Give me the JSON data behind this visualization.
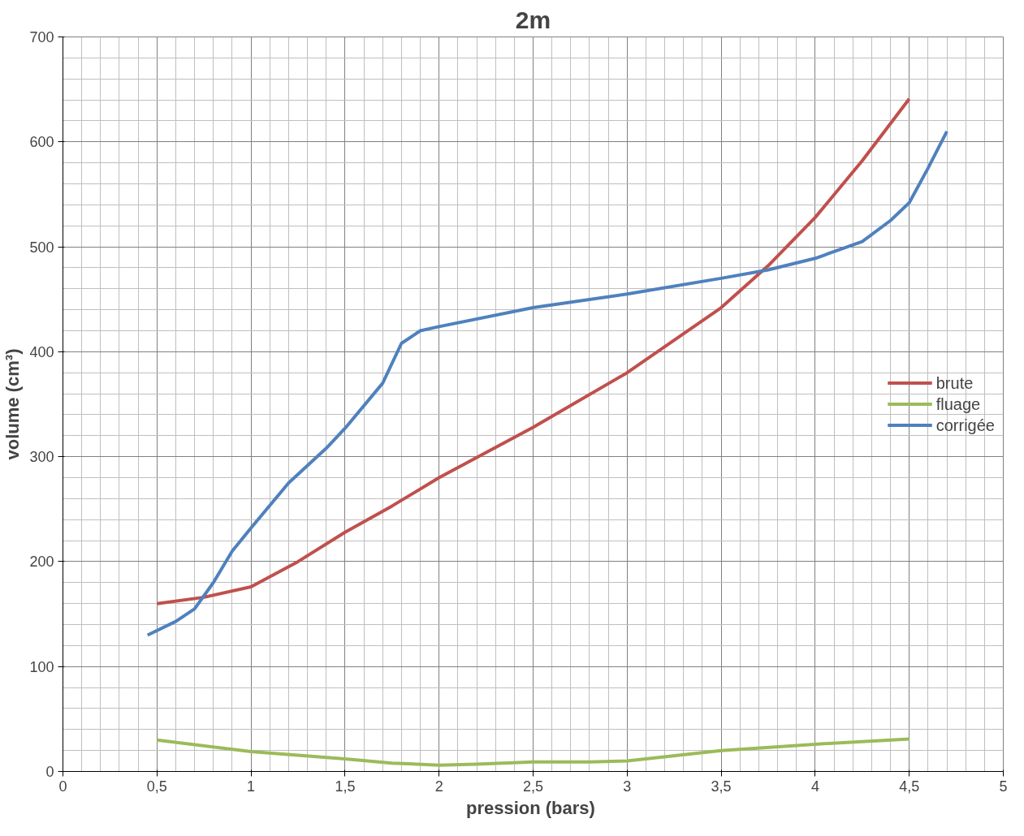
{
  "chart_data": {
    "type": "line",
    "title": "2m",
    "xlabel": "pression  (bars)",
    "ylabel": "volume (cm³)",
    "xlim": [
      0,
      5
    ],
    "ylim": [
      0,
      700
    ],
    "xticks": [
      0,
      {
        "value": 0.5,
        "label": "0,5"
      },
      1,
      {
        "value": 1.5,
        "label": "1,5"
      },
      2,
      {
        "value": 2.5,
        "label": "2,5"
      },
      3,
      {
        "value": 3.5,
        "label": "3,5"
      },
      4,
      {
        "value": 4.5,
        "label": "4,5"
      },
      5
    ],
    "yticks": [
      0,
      100,
      200,
      300,
      400,
      500,
      600,
      700
    ],
    "grid": true,
    "legend": "right",
    "marker": "none",
    "line_style": "solid",
    "series": [
      {
        "name": "brute",
        "color": "#c0504d",
        "x": [
          0.5,
          0.75,
          1.0,
          1.25,
          1.5,
          1.75,
          2.0,
          2.5,
          3.0,
          3.5,
          3.75,
          4.0,
          4.25,
          4.5
        ],
        "values": [
          160,
          166,
          176,
          200,
          228,
          253,
          280,
          328,
          380,
          442,
          482,
          528,
          582,
          641
        ]
      },
      {
        "name": "fluage",
        "color": "#9bbb59",
        "x": [
          0.5,
          1.0,
          1.5,
          1.75,
          2.0,
          2.2,
          2.5,
          2.8,
          3.0,
          3.5,
          4.0,
          4.5
        ],
        "values": [
          30,
          19,
          12,
          8,
          6,
          7,
          9,
          9,
          10,
          20,
          26,
          31
        ]
      },
      {
        "name": "corrigée",
        "color": "#4f81bd",
        "x": [
          0.45,
          0.6,
          0.7,
          0.8,
          0.9,
          1.0,
          1.2,
          1.4,
          1.5,
          1.7,
          1.8,
          1.9,
          2.0,
          2.5,
          3.0,
          3.5,
          3.75,
          4.0,
          4.25,
          4.4,
          4.5,
          4.6,
          4.7
        ],
        "values": [
          130,
          143,
          155,
          180,
          210,
          232,
          275,
          308,
          327,
          370,
          408,
          420,
          424,
          442,
          455,
          470,
          478,
          489,
          505,
          525,
          542,
          575,
          610
        ]
      }
    ]
  }
}
